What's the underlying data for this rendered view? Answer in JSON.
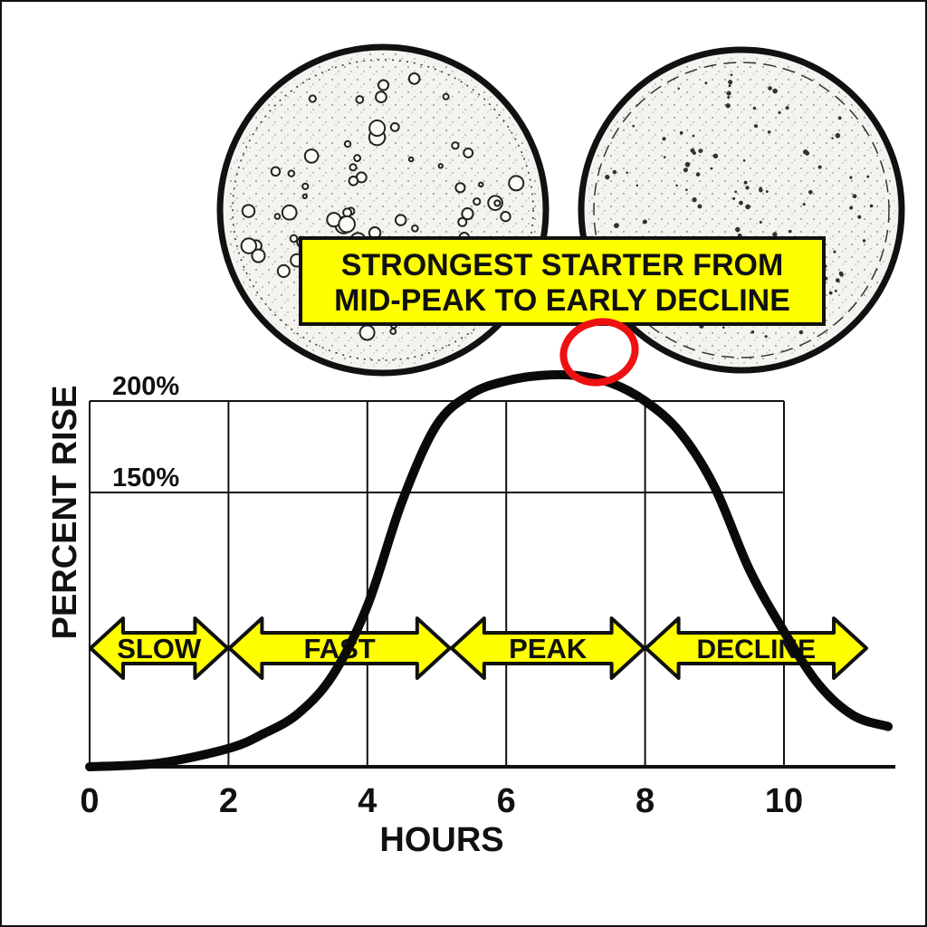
{
  "chart_data": {
    "type": "line",
    "xlabel": "HOURS",
    "ylabel": "PERCENT RISE",
    "x_ticks": [
      0,
      2,
      4,
      6,
      8,
      10
    ],
    "y_ticks": [
      {
        "value": 150,
        "label": "150%"
      },
      {
        "value": 200,
        "label": "200%"
      }
    ],
    "xlim": [
      0,
      11.5
    ],
    "grid": true,
    "series": [
      {
        "x": [
          0,
          1,
          2,
          2.5,
          3,
          3.5,
          4,
          4.5,
          5,
          5.5,
          6,
          6.5,
          7,
          7.5,
          8,
          8.5,
          9,
          9.5,
          10,
          10.5,
          11,
          11.5
        ],
        "y": [
          0,
          2,
          10,
          18,
          29,
          50,
          88,
          145,
          187,
          204,
          211,
          214,
          214,
          210,
          200,
          183,
          153,
          108,
          74,
          45,
          28,
          22
        ]
      }
    ],
    "phases": [
      {
        "label": "SLOW",
        "from": 0,
        "to": 2
      },
      {
        "label": "FAST",
        "from": 2,
        "to": 5.2
      },
      {
        "label": "PEAK",
        "from": 5.2,
        "to": 8
      },
      {
        "label": "DECLINE",
        "from": 8,
        "to": 11.2
      }
    ],
    "annotation": {
      "lines": [
        "STRONGEST STARTER FROM",
        "MID-PEAK TO EARLY DECLINE"
      ],
      "circled_x": 7.7
    }
  },
  "colors": {
    "curve": "#0a0a0a",
    "grid": "#111111",
    "phase_fill": "#ffff00",
    "callout_fill": "#ffff00",
    "circle_marker": "#ee1111",
    "jar_fill": "#f4f3ef"
  },
  "illustrations": {
    "left": "bubbly-starter-top-view",
    "right": "collapsed-starter-top-view"
  }
}
